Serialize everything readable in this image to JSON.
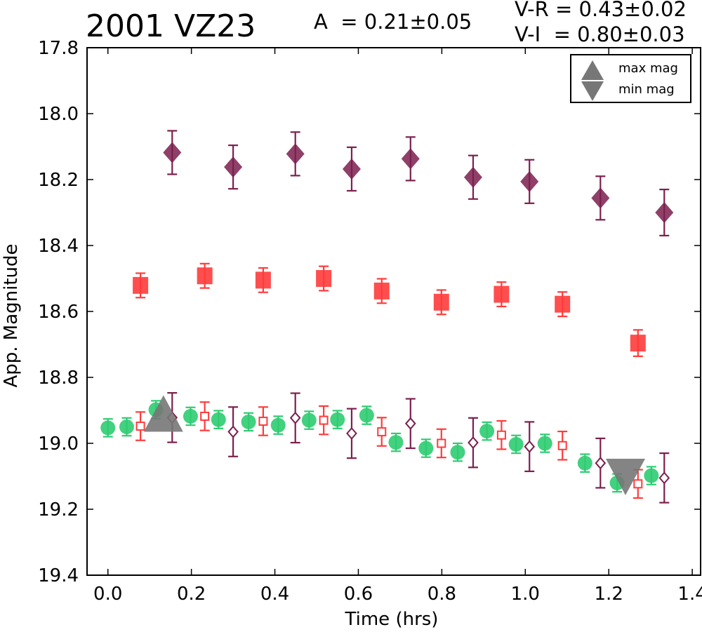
{
  "header": {
    "title": "2001 VZ23",
    "amplitude": "A  = 0.21±0.05",
    "vr": "V-R = 0.43±0.02",
    "vi": "V-I  = 0.80±0.03"
  },
  "legend": {
    "max_label": "max mag",
    "min_label": "min mag"
  },
  "chart_data": {
    "type": "scatter",
    "xlabel": "Time (hrs)",
    "ylabel": "App. Magnitude",
    "xlim": [
      -0.05,
      1.42
    ],
    "ylim": [
      17.8,
      19.4
    ],
    "y_inverted": true,
    "xticks": [
      "0.0",
      "0.2",
      "0.4",
      "0.6",
      "0.8",
      "1.0",
      "1.2",
      "1.4"
    ],
    "yticks": [
      "17.8",
      "18.0",
      "18.2",
      "18.4",
      "18.6",
      "18.8",
      "19.0",
      "19.2",
      "19.4"
    ],
    "legend_position": "top-right",
    "colors": {
      "green": "#2ecc71",
      "red": "#ff3b3b",
      "purple": "#7b1f4e",
      "marker": "#777777"
    },
    "series": [
      {
        "marker": "diamond-filled",
        "color": "#7b1f4e",
        "x": [
          0.154,
          0.3,
          0.449,
          0.584,
          0.725,
          0.875,
          1.01,
          1.18,
          1.333
        ],
        "y": [
          18.118,
          18.162,
          18.122,
          18.168,
          18.137,
          18.193,
          18.206,
          18.256,
          18.3
        ],
        "err": [
          0.066,
          0.066,
          0.066,
          0.066,
          0.066,
          0.066,
          0.066,
          0.066,
          0.07
        ]
      },
      {
        "marker": "square-filled",
        "color": "#ff3b3b",
        "x": [
          0.078,
          0.232,
          0.372,
          0.517,
          0.656,
          0.799,
          0.943,
          1.089,
          1.27
        ],
        "y": [
          18.521,
          18.492,
          18.505,
          18.5,
          18.538,
          18.572,
          18.548,
          18.578,
          18.696
        ],
        "err": [
          0.037,
          0.037,
          0.037,
          0.037,
          0.037,
          0.037,
          0.037,
          0.037,
          0.04
        ]
      },
      {
        "marker": "circle-filled",
        "color": "#2ecc71",
        "x": [
          0.0,
          0.045,
          0.115,
          0.198,
          0.265,
          0.337,
          0.408,
          0.482,
          0.55,
          0.62,
          0.69,
          0.762,
          0.838,
          0.908,
          0.978,
          1.047,
          1.143,
          1.22,
          1.302
        ],
        "y": [
          18.953,
          18.95,
          18.898,
          18.918,
          18.928,
          18.935,
          18.945,
          18.93,
          18.928,
          18.915,
          18.997,
          19.015,
          19.027,
          18.963,
          19.003,
          19.0,
          19.06,
          19.12,
          19.098
        ],
        "err": [
          0.027,
          0.027,
          0.027,
          0.027,
          0.027,
          0.027,
          0.027,
          0.027,
          0.027,
          0.027,
          0.027,
          0.027,
          0.027,
          0.027,
          0.027,
          0.027,
          0.027,
          0.027,
          0.027
        ]
      },
      {
        "marker": "square-open",
        "color": "#ff3b3b",
        "x": [
          0.078,
          0.232,
          0.372,
          0.517,
          0.656,
          0.799,
          0.943,
          1.089,
          1.27
        ],
        "y": [
          18.948,
          18.918,
          18.933,
          18.93,
          18.965,
          19.0,
          18.975,
          19.007,
          19.123
        ],
        "err": [
          0.043,
          0.043,
          0.043,
          0.043,
          0.043,
          0.043,
          0.043,
          0.043,
          0.043
        ]
      },
      {
        "marker": "diamond-open",
        "color": "#7b1f4e",
        "x": [
          0.154,
          0.3,
          0.449,
          0.584,
          0.725,
          0.875,
          1.01,
          1.18,
          1.333
        ],
        "y": [
          18.922,
          18.965,
          18.923,
          18.97,
          18.94,
          18.998,
          19.01,
          19.06,
          19.105
        ],
        "err": [
          0.075,
          0.075,
          0.075,
          0.075,
          0.075,
          0.075,
          0.075,
          0.075,
          0.075
        ]
      }
    ],
    "extrema": [
      {
        "type": "max",
        "x": 0.133,
        "y": 18.918
      },
      {
        "type": "min",
        "x": 1.24,
        "y": 19.1
      }
    ]
  }
}
